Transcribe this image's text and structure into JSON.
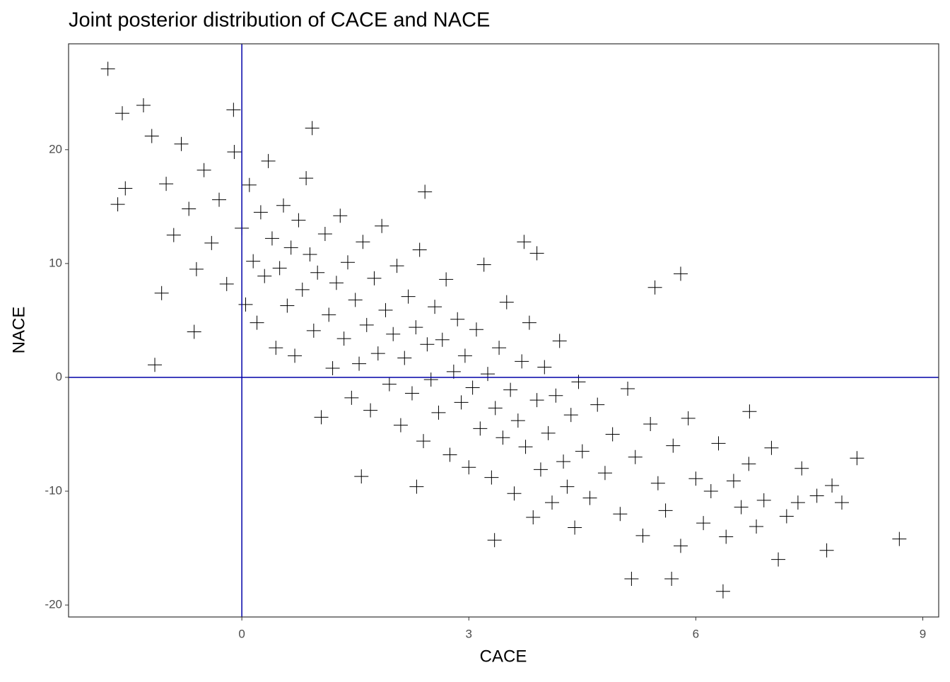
{
  "chart_data": {
    "type": "scatter",
    "title": "Joint posterior distribution of CACE and NACE",
    "x_label": "CACE",
    "y_label": "NACE",
    "marker": "+",
    "color": "#000000",
    "xlim": [
      -2.29,
      9.21
    ],
    "ylim": [
      -21.05,
      29.3
    ],
    "xticks": [
      0,
      3,
      6,
      9
    ],
    "yticks": [
      -20,
      -10,
      0,
      10,
      20
    ],
    "grid": false,
    "reference_lines": {
      "x": [
        0
      ],
      "y": [
        0
      ],
      "color": "#0000a8"
    },
    "x": [
      -1.77,
      -1.58,
      -1.3,
      -1.19,
      -1.54,
      -1.64,
      -1.15,
      -1.06,
      -0.63,
      -0.11,
      0.93,
      2.42,
      5.8,
      5.46,
      8.13,
      8.69,
      6.36,
      5.68,
      5.15,
      3.34,
      1.58,
      2.31,
      7.73,
      7.09,
      6.71,
      3.73,
      3.9,
      7.35,
      7.93,
      -1.0,
      -0.9,
      -0.8,
      -0.7,
      -0.6,
      -0.5,
      -0.4,
      -0.3,
      -0.2,
      -0.1,
      0.0,
      0.05,
      0.1,
      0.15,
      0.2,
      0.25,
      0.3,
      0.35,
      0.4,
      0.45,
      0.5,
      0.55,
      0.6,
      0.65,
      0.7,
      0.75,
      0.8,
      0.85,
      0.9,
      0.95,
      1.0,
      1.05,
      1.1,
      1.15,
      1.2,
      1.25,
      1.3,
      1.35,
      1.4,
      1.45,
      1.5,
      1.55,
      1.6,
      1.65,
      1.7,
      1.75,
      1.8,
      1.85,
      1.9,
      1.95,
      2.0,
      2.05,
      2.1,
      2.15,
      2.2,
      2.25,
      2.3,
      2.35,
      2.4,
      2.45,
      2.5,
      2.55,
      2.6,
      2.65,
      2.7,
      2.75,
      2.8,
      2.85,
      2.9,
      2.95,
      3.0,
      3.05,
      3.1,
      3.15,
      3.2,
      3.25,
      3.3,
      3.35,
      3.4,
      3.45,
      3.5,
      3.55,
      3.6,
      3.65,
      3.7,
      3.75,
      3.8,
      3.85,
      3.9,
      3.95,
      4.0,
      4.05,
      4.1,
      4.15,
      4.2,
      4.25,
      4.3,
      4.35,
      4.4,
      4.45,
      4.5,
      4.6,
      4.7,
      4.8,
      4.9,
      5.0,
      5.1,
      5.2,
      5.3,
      5.4,
      5.5,
      5.6,
      5.7,
      5.8,
      5.9,
      6.0,
      6.1,
      6.2,
      6.3,
      6.4,
      6.5,
      6.6,
      6.7,
      6.8,
      6.9,
      7.0,
      7.2,
      7.4,
      7.6,
      7.8
    ],
    "y": [
      27.1,
      23.2,
      23.9,
      21.2,
      16.6,
      15.2,
      1.1,
      7.4,
      4.0,
      23.5,
      21.9,
      16.3,
      9.1,
      7.9,
      -7.1,
      -14.2,
      -18.8,
      -17.7,
      -17.7,
      -14.3,
      -8.7,
      -9.6,
      -15.2,
      -16.0,
      -3.0,
      11.9,
      10.9,
      -11.0,
      -11.0,
      17.0,
      12.5,
      20.5,
      14.8,
      9.5,
      18.2,
      11.8,
      15.6,
      8.2,
      19.8,
      13.1,
      6.4,
      16.9,
      10.2,
      4.8,
      14.5,
      8.9,
      19.0,
      12.2,
      2.6,
      9.6,
      15.1,
      6.3,
      11.4,
      1.9,
      13.8,
      7.7,
      17.5,
      10.8,
      4.1,
      9.2,
      -3.5,
      12.6,
      5.5,
      0.8,
      8.3,
      14.2,
      3.4,
      10.1,
      -1.8,
      6.8,
      1.2,
      11.9,
      4.6,
      -2.9,
      8.7,
      2.1,
      13.3,
      5.9,
      -0.6,
      3.8,
      9.8,
      -4.2,
      1.7,
      7.1,
      -1.4,
      4.4,
      11.2,
      -5.6,
      2.9,
      -0.2,
      6.2,
      -3.1,
      3.3,
      8.6,
      -6.8,
      0.5,
      5.1,
      -2.2,
      1.9,
      -7.9,
      -0.9,
      4.2,
      -4.5,
      9.9,
      0.3,
      -8.8,
      -2.7,
      2.6,
      -5.3,
      6.6,
      -1.1,
      -10.2,
      -3.8,
      1.4,
      -6.1,
      4.8,
      -12.3,
      -2.0,
      -8.1,
      0.9,
      -4.9,
      -11.0,
      -1.6,
      3.2,
      -7.4,
      -9.6,
      -3.3,
      -13.2,
      -0.4,
      -6.5,
      -10.6,
      -2.4,
      -8.4,
      -5.0,
      -12.0,
      -1.0,
      -7.0,
      -13.9,
      -4.1,
      -9.3,
      -11.7,
      -6.0,
      -14.8,
      -3.6,
      -8.9,
      -12.8,
      -10.0,
      -5.8,
      -14.0,
      -9.1,
      -11.4,
      -7.6,
      -13.1,
      -10.8,
      -6.2,
      -12.2,
      -8.0,
      -10.4,
      -9.5
    ]
  }
}
